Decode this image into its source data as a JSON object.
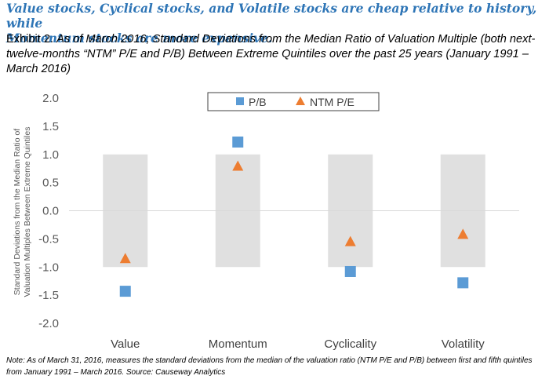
{
  "headline": {
    "line1": "Value stocks, Cyclical stocks, and Volatile stocks are cheap relative to history, while",
    "line2": "Momentum stocks are more expensive."
  },
  "exhibit": {
    "lead": "Exhibit 2.",
    "text": "As of March 2016, Standard Deviations from the Median Ratio of Valuation Multiple (both next-twelve-months “NTM” P/E and P/B) Between Extreme Quintiles over the past 25 years (January 1991 – March 2016)"
  },
  "note": "Note: As of March 31, 2016, measures the standard deviations from the median of the valuation ratio (NTM P/E and P/B) between first and fifth quintiles from January 1991 – March 2016.  Source: Causeway Analytics",
  "chart_data": {
    "type": "scatter",
    "categories": [
      "Value",
      "Momentum",
      "Cyclicality",
      "Volatility"
    ],
    "ylabel_line1": "Standard Deviations from the Median Ratio of",
    "ylabel_line2": "Valuation Multiples Between Extreme Quintiles",
    "ylim": [
      -2.0,
      2.0
    ],
    "yticks": [
      "2.0",
      "1.5",
      "1.0",
      "0.5",
      "0.0",
      "-0.5",
      "-1.0",
      "-1.5",
      "-2.0"
    ],
    "band": {
      "low": -1.0,
      "high": 1.0,
      "color": "#e0e0e0"
    },
    "grid": false,
    "legend_position": "top-center",
    "series": [
      {
        "name": "P/B",
        "marker": "square",
        "color": "#5b9bd5",
        "values": [
          -1.43,
          1.22,
          -1.08,
          -1.28
        ]
      },
      {
        "name": "NTM P/E",
        "marker": "triangle",
        "color": "#ed7d31",
        "values": [
          -0.86,
          0.78,
          -0.56,
          -0.43
        ]
      }
    ]
  }
}
